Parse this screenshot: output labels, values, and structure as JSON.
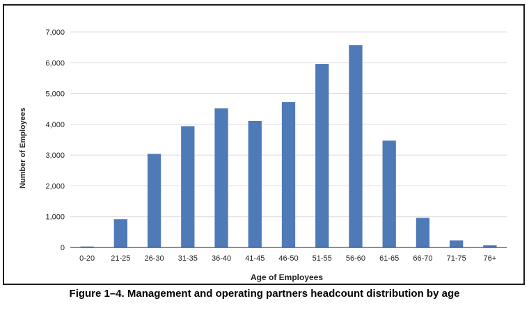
{
  "caption": "Figure 1–4.  Management and operating partners headcount distribution by age",
  "chart_data": {
    "type": "bar",
    "categories": [
      "0-20",
      "21-25",
      "26-30",
      "31-35",
      "36-40",
      "41-45",
      "46-50",
      "51-55",
      "56-60",
      "61-65",
      "66-70",
      "71-75",
      "76+"
    ],
    "values": [
      30,
      920,
      3040,
      3940,
      4520,
      4110,
      4720,
      5960,
      6570,
      3470,
      960,
      230,
      70
    ],
    "xlabel": "Age of Employees",
    "ylabel": "Number of Employees",
    "ylim": [
      0,
      7000
    ],
    "yticks": [
      0,
      1000,
      2000,
      3000,
      4000,
      5000,
      6000,
      7000
    ],
    "ytick_labels": [
      "0",
      "1,000",
      "2,000",
      "3,000",
      "4,000",
      "5,000",
      "6,000",
      "7,000"
    ],
    "grid": true,
    "bar_color": "#4f7ab8"
  }
}
